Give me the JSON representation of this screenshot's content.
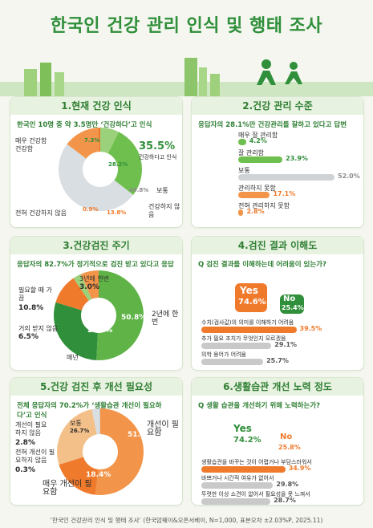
{
  "title": "한국인 건강 관리 인식 및 행태 조사",
  "section1": {
    "heading": "1.현재 건강 인식",
    "subtitle": "한국인 10명 중 약 3.5명만 ‘건강하다’고 인식",
    "labels": {
      "very_healthy": "매우 건강함",
      "healthy": "건강함",
      "normal": "보통",
      "not_healthy": "건강하지 않음",
      "not_at_all": "전혀 건강하지 않음",
      "combined": "건강하다고 인식"
    },
    "values": {
      "very_healthy": "7.3%",
      "healthy": "28.2%",
      "normal": "49.8%",
      "not_healthy": "13.8%",
      "not_at_all": "0.9%",
      "combined": "35.5%"
    }
  },
  "section2": {
    "heading": "2.건강 관리 수준",
    "subtitle": "응답자의 28.1%만 건강관리를 잘하고 있다고 답변",
    "bars": [
      {
        "label": "매우 잘 관리함",
        "value": 4.2,
        "text": "4.2%",
        "color": "#6fbf4e"
      },
      {
        "label": "잘 관리함",
        "value": 23.9,
        "text": "23.9%",
        "color": "#6fbf4e"
      },
      {
        "label": "보통",
        "value": 52.0,
        "text": "52.0%",
        "color": "#cfd3d6"
      },
      {
        "label": "관리하지 못함",
        "value": 17.1,
        "text": "17.1%",
        "color": "#f2954a"
      },
      {
        "label": "전혀 관리하지 못함",
        "value": 2.8,
        "text": "2.8%",
        "color": "#f2954a"
      }
    ]
  },
  "section3": {
    "heading": "3.건강검진 주기",
    "subtitle": "응답자의 82.7%가 정기적으로 검진 받고 있다고 응답",
    "labels": {
      "every_2": "2년에 한번",
      "every_year": "매년",
      "when_needed": "필요할 때 가끔",
      "every_3": "3년에 한번",
      "never": "거의 받지 않음"
    },
    "values": {
      "every_2": "50.8%",
      "every_year": "28.9%",
      "when_needed": "10.8%",
      "every_3": "3.0%",
      "never": "6.5%"
    }
  },
  "section4": {
    "heading": "4.검진 결과 이해도",
    "question": "Q 검진 결과를 이해하는데 어려움이 있는가?",
    "yes_label": "Yes",
    "yes_value": "74.6%",
    "no_label": "No",
    "no_value": "25.4%",
    "bars": [
      {
        "label": "수치(검사값)의 의미를 이해하기 어려움",
        "value": 39.5,
        "text": "39.5%",
        "color": "#f07a2c"
      },
      {
        "label": "추가 필요 조치가 무엇인지 모르겠음",
        "value": 29.1,
        "text": "29.1%",
        "color": "#c9c9c9"
      },
      {
        "label": "의학 용어가 어려움",
        "value": 25.7,
        "text": "25.7%",
        "color": "#c9c9c9"
      }
    ]
  },
  "section5": {
    "heading": "5.건강 검진 후 개선 필요성",
    "subtitle": "전체 응답자의 70.2%가 ‘생활습관 개선이 필요하다’고 인식",
    "labels": {
      "need": "개선이 필요함",
      "very_need": "매우 개선이 필요함",
      "normal": "보통",
      "no_need": "개선이 필요하지 않음",
      "no_need_at_all": "전혀 개선이 필요하지 않음"
    },
    "values": {
      "need": "51.8%",
      "very_need": "18.4%",
      "normal": "26.7%",
      "no_need": "2.8%",
      "no_need_at_all": "0.3%"
    }
  },
  "section6": {
    "heading": "6.생활습관 개선 노력 정도",
    "question": "Q 생활 습관을 개선하기 위해 노력하는가?",
    "yes_label": "Yes",
    "yes_value": "74.2%",
    "no_label": "No",
    "no_value": "25.8%",
    "bars": [
      {
        "label": "생활습관을 바꾸는 것이 어렵거나 부담스러워서",
        "value": 34.9,
        "text": "34.9%",
        "color": "#f07a2c"
      },
      {
        "label": "바쁘거나 시간적 여유가 없어서",
        "value": 29.8,
        "text": "29.8%",
        "color": "#c9c9c9"
      },
      {
        "label": "뚜렷한 이상 소견이 없어서 필요성을 못 느껴서",
        "value": 28.7,
        "text": "28.7%",
        "color": "#c9c9c9"
      }
    ]
  },
  "footer": "‘한국인 건강관리 인식 및 행태 조사’ (한국암웨이&오픈서베이, N=1,000, 표본오차 ±2.03%P, 2025.11)",
  "colors": {
    "green": "#2f8f3a",
    "light_green": "#6fbf4e",
    "orange": "#f07a2c",
    "light_orange": "#f2954a",
    "gray": "#c9c9c9"
  },
  "chart_data": [
    {
      "type": "pie",
      "categories": [
        "매우 건강함",
        "건강함",
        "보통",
        "건강하지 않음",
        "전혀 건강하지 않음"
      ],
      "values": [
        7.3,
        28.2,
        49.8,
        13.8,
        0.9
      ]
    },
    {
      "type": "bar",
      "categories": [
        "매우 잘 관리함",
        "잘 관리함",
        "보통",
        "관리하지 못함",
        "전혀 관리하지 못함"
      ],
      "values": [
        4.2,
        23.9,
        52.0,
        17.1,
        2.8
      ]
    },
    {
      "type": "pie",
      "categories": [
        "2년에 한번",
        "매년",
        "필요할 때 가끔",
        "3년에 한번",
        "거의 받지 않음"
      ],
      "values": [
        50.8,
        28.9,
        10.8,
        3.0,
        6.5
      ]
    },
    {
      "type": "bar",
      "categories": [
        "수치(검사값)의 의미를 이해하기 어려움",
        "추가 필요 조치가 무엇인지 모르겠음",
        "의학 용어가 어려움"
      ],
      "values": [
        39.5,
        29.1,
        25.7
      ]
    },
    {
      "type": "pie",
      "categories": [
        "개선이 필요함",
        "매우 개선이 필요함",
        "보통",
        "개선이 필요하지 않음",
        "전혀 개선이 필요하지 않음"
      ],
      "values": [
        51.8,
        18.4,
        26.7,
        2.8,
        0.3
      ]
    },
    {
      "type": "bar",
      "categories": [
        "생활습관을 바꾸는 것이 어렵거나 부담스러워서",
        "바쁘거나 시간적 여유가 없어서",
        "뚜렷한 이상 소견이 없어서 필요성을 못 느껴서"
      ],
      "values": [
        34.9,
        29.8,
        28.7
      ]
    }
  ]
}
